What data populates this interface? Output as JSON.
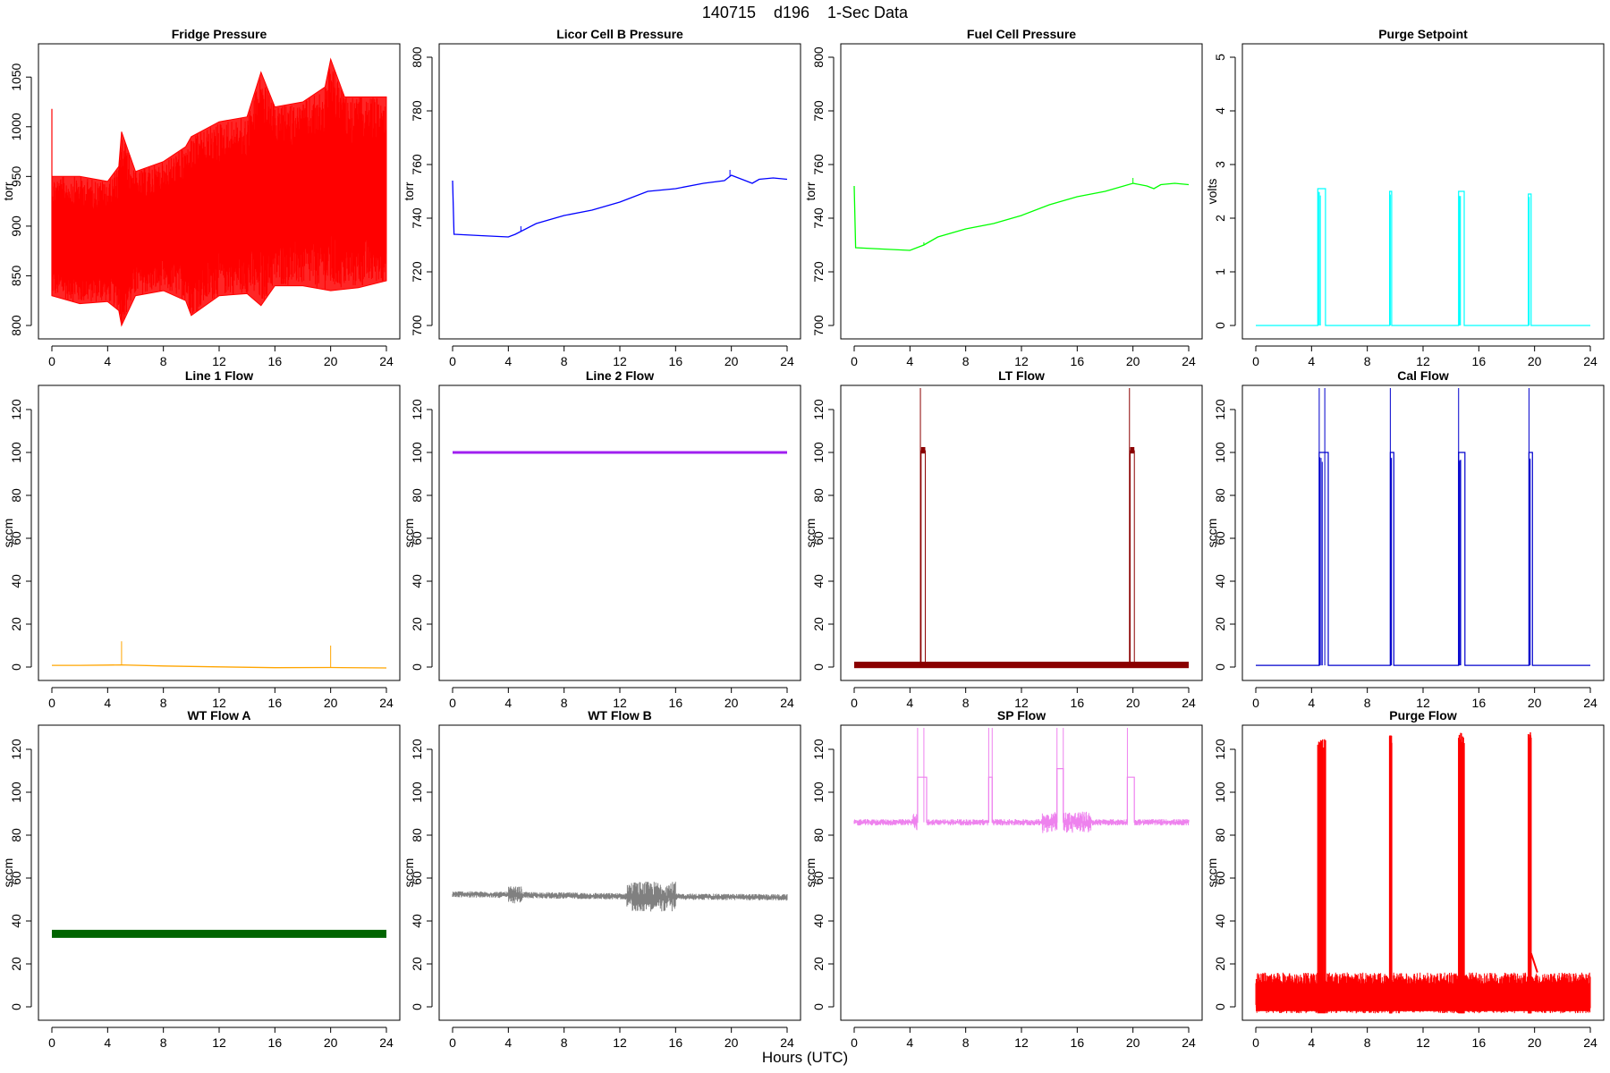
{
  "figure": {
    "title": "140715    d196    1-Sec Data",
    "xlabel": "Hours (UTC)"
  },
  "chart_data": [
    {
      "name": "Fridge Pressure",
      "type": "line",
      "title": "Fridge Pressure",
      "ylabel": "torr",
      "color": "#ff0000",
      "xlim": [
        0,
        24
      ],
      "ylim": [
        800,
        1070
      ],
      "xticks": [
        0,
        4,
        8,
        12,
        16,
        20,
        24
      ],
      "yticks": [
        800,
        850,
        900,
        950,
        1000,
        1050
      ],
      "style": "band",
      "lower": [
        [
          0,
          830
        ],
        [
          2,
          822
        ],
        [
          4,
          824
        ],
        [
          4.8,
          815
        ],
        [
          5,
          800
        ],
        [
          6,
          830
        ],
        [
          8,
          835
        ],
        [
          9.6,
          825
        ],
        [
          10,
          810
        ],
        [
          12,
          830
        ],
        [
          14,
          832
        ],
        [
          15,
          820
        ],
        [
          16,
          840
        ],
        [
          18,
          840
        ],
        [
          20,
          835
        ],
        [
          22,
          838
        ],
        [
          24,
          845
        ]
      ],
      "upper": [
        [
          0,
          950
        ],
        [
          2,
          950
        ],
        [
          4,
          945
        ],
        [
          4.8,
          960
        ],
        [
          5,
          995
        ],
        [
          6,
          955
        ],
        [
          8,
          965
        ],
        [
          9.6,
          980
        ],
        [
          10,
          990
        ],
        [
          12,
          1005
        ],
        [
          14,
          1010
        ],
        [
          15,
          1055
        ],
        [
          16,
          1020
        ],
        [
          18,
          1025
        ],
        [
          19.6,
          1040
        ],
        [
          20,
          1068
        ],
        [
          21,
          1030
        ],
        [
          24,
          1030
        ]
      ],
      "spikes": [
        [
          0,
          1018
        ]
      ]
    },
    {
      "name": "Licor Cell B Pressure",
      "type": "line",
      "title": "Licor Cell B Pressure",
      "ylabel": "torr",
      "color": "#0000ff",
      "xlim": [
        0,
        24
      ],
      "ylim": [
        700,
        800
      ],
      "xticks": [
        0,
        4,
        8,
        12,
        16,
        20,
        24
      ],
      "yticks": [
        700,
        720,
        740,
        760,
        780,
        800
      ],
      "style": "line",
      "points": [
        [
          0,
          754
        ],
        [
          0.1,
          734
        ],
        [
          2,
          733.5
        ],
        [
          4,
          733
        ],
        [
          4.5,
          734
        ],
        [
          6,
          738
        ],
        [
          8,
          741
        ],
        [
          10,
          743
        ],
        [
          12,
          746
        ],
        [
          14,
          750
        ],
        [
          16,
          751
        ],
        [
          18,
          753
        ],
        [
          19.5,
          754
        ],
        [
          20,
          756
        ],
        [
          21,
          754
        ],
        [
          21.5,
          753
        ],
        [
          22,
          754.5
        ],
        [
          23,
          755
        ],
        [
          24,
          754.5
        ]
      ],
      "spikes": [
        [
          4.9,
          737
        ],
        [
          19.9,
          758
        ]
      ]
    },
    {
      "name": "Fuel Cell Pressure",
      "type": "line",
      "title": "Fuel Cell Pressure",
      "ylabel": "torr",
      "color": "#00ff00",
      "xlim": [
        0,
        24
      ],
      "ylim": [
        700,
        800
      ],
      "xticks": [
        0,
        4,
        8,
        12,
        16,
        20,
        24
      ],
      "yticks": [
        700,
        720,
        740,
        760,
        780,
        800
      ],
      "style": "line",
      "points": [
        [
          0,
          752
        ],
        [
          0.1,
          729
        ],
        [
          2,
          728.5
        ],
        [
          4,
          728
        ],
        [
          5,
          730
        ],
        [
          6,
          733
        ],
        [
          8,
          736
        ],
        [
          10,
          738
        ],
        [
          12,
          741
        ],
        [
          14,
          745
        ],
        [
          16,
          748
        ],
        [
          18,
          750
        ],
        [
          20,
          753
        ],
        [
          21,
          752
        ],
        [
          21.5,
          751
        ],
        [
          22,
          752.5
        ],
        [
          23,
          753
        ],
        [
          24,
          752.5
        ]
      ],
      "spikes": [
        [
          5,
          731
        ],
        [
          20,
          755
        ]
      ]
    },
    {
      "name": "Purge Setpoint",
      "type": "line",
      "title": "Purge Setpoint",
      "ylabel": "volts",
      "color": "#00ffff",
      "xlim": [
        0,
        24
      ],
      "ylim": [
        0,
        5
      ],
      "xticks": [
        0,
        4,
        8,
        12,
        16,
        20,
        24
      ],
      "yticks": [
        0,
        1,
        2,
        3,
        4,
        5
      ],
      "style": "pulses",
      "base": 0,
      "pulses": [
        [
          4.45,
          5.0,
          2.55
        ],
        [
          9.6,
          9.75,
          2.5
        ],
        [
          14.55,
          14.95,
          2.5
        ],
        [
          19.55,
          19.75,
          2.45
        ]
      ]
    },
    {
      "name": "Line 1 Flow",
      "type": "line",
      "title": "Line 1 Flow",
      "ylabel": "sccm",
      "color": "#ffa500",
      "xlim": [
        0,
        24
      ],
      "ylim": [
        0,
        125
      ],
      "xticks": [
        0,
        4,
        8,
        12,
        16,
        20,
        24
      ],
      "yticks": [
        0,
        20,
        40,
        60,
        80,
        100,
        120
      ],
      "style": "line",
      "points": [
        [
          0,
          0.8
        ],
        [
          2,
          0.8
        ],
        [
          4,
          0.9
        ],
        [
          5,
          1.0
        ],
        [
          8,
          0.5
        ],
        [
          12,
          0.1
        ],
        [
          16,
          -0.3
        ],
        [
          20,
          -0.2
        ],
        [
          24,
          -0.4
        ]
      ],
      "spikes": [
        [
          5,
          12
        ],
        [
          20,
          10
        ]
      ]
    },
    {
      "name": "Line 2 Flow",
      "type": "line",
      "title": "Line 2 Flow",
      "ylabel": "sccm",
      "color": "#a020f0",
      "xlim": [
        0,
        24
      ],
      "ylim": [
        0,
        125
      ],
      "xticks": [
        0,
        4,
        8,
        12,
        16,
        20,
        24
      ],
      "yticks": [
        0,
        20,
        40,
        60,
        80,
        100,
        120
      ],
      "style": "thick",
      "points": [
        [
          0,
          100
        ],
        [
          24,
          100
        ]
      ]
    },
    {
      "name": "LT Flow",
      "type": "line",
      "title": "LT Flow",
      "ylabel": "sccm",
      "color": "#8b0000",
      "xlim": [
        0,
        24
      ],
      "ylim": [
        0,
        125
      ],
      "xticks": [
        0,
        4,
        8,
        12,
        16,
        20,
        24
      ],
      "yticks": [
        0,
        20,
        40,
        60,
        80,
        100,
        120
      ],
      "style": "lt",
      "base": 1,
      "blocks": [
        [
          4.8,
          5.1,
          101
        ],
        [
          19.8,
          20.1,
          101
        ]
      ],
      "spikes": [
        [
          4.75,
          130
        ],
        [
          19.75,
          130
        ]
      ]
    },
    {
      "name": "Cal Flow",
      "type": "line",
      "title": "Cal Flow",
      "ylabel": "sccm",
      "color": "#0000cd",
      "xlim": [
        0,
        24
      ],
      "ylim": [
        0,
        125
      ],
      "xticks": [
        0,
        4,
        8,
        12,
        16,
        20,
        24
      ],
      "yticks": [
        0,
        20,
        40,
        60,
        80,
        100,
        120
      ],
      "style": "pulses",
      "base": 0.8,
      "pulses": [
        [
          4.55,
          5.2,
          100
        ],
        [
          9.65,
          9.9,
          100
        ],
        [
          14.55,
          15.0,
          100
        ],
        [
          19.6,
          19.85,
          100
        ]
      ],
      "spikes": [
        [
          4.55,
          130
        ],
        [
          4.95,
          130
        ],
        [
          9.65,
          130
        ],
        [
          14.55,
          130
        ],
        [
          19.6,
          130
        ]
      ]
    },
    {
      "name": "WT Flow A",
      "type": "line",
      "title": "WT Flow A",
      "ylabel": "sccm",
      "color": "#006400",
      "xlim": [
        0,
        24
      ],
      "ylim": [
        0,
        125
      ],
      "xticks": [
        0,
        4,
        8,
        12,
        16,
        20,
        24
      ],
      "yticks": [
        0,
        20,
        40,
        60,
        80,
        100,
        120
      ],
      "style": "thick",
      "points": [
        [
          0,
          34
        ],
        [
          24,
          34
        ]
      ]
    },
    {
      "name": "WT Flow B",
      "type": "line",
      "title": "WT Flow B",
      "ylabel": "sccm",
      "color": "#808080",
      "xlim": [
        0,
        24
      ],
      "ylim": [
        0,
        125
      ],
      "xticks": [
        0,
        4,
        8,
        12,
        16,
        20,
        24
      ],
      "yticks": [
        0,
        20,
        40,
        60,
        80,
        100,
        120
      ],
      "style": "noisy",
      "base": 52,
      "noise": [
        [
          0,
          24,
          1.5
        ],
        [
          4,
          5,
          4
        ],
        [
          12.5,
          16,
          7
        ]
      ],
      "trend": [
        [
          0,
          52.5
        ],
        [
          12,
          51.5
        ],
        [
          24,
          51
        ]
      ]
    },
    {
      "name": "SP Flow",
      "type": "line",
      "title": "SP Flow",
      "ylabel": "sccm",
      "color": "#ee82ee",
      "xlim": [
        0,
        24
      ],
      "ylim": [
        0,
        125
      ],
      "xticks": [
        0,
        4,
        8,
        12,
        16,
        20,
        24
      ],
      "yticks": [
        0,
        20,
        40,
        60,
        80,
        100,
        120
      ],
      "style": "sp",
      "base": 86,
      "pulses": [
        [
          4.55,
          5.2,
          107
        ],
        [
          9.65,
          9.9,
          107
        ],
        [
          14.55,
          15.0,
          111
        ],
        [
          19.6,
          20.1,
          107
        ]
      ],
      "spikes": [
        [
          4.55,
          130
        ],
        [
          5.0,
          130
        ],
        [
          9.65,
          130
        ],
        [
          9.9,
          130
        ],
        [
          14.55,
          130
        ],
        [
          15.0,
          130
        ],
        [
          19.6,
          130
        ]
      ],
      "noise": [
        [
          0,
          24,
          1.5
        ],
        [
          4.2,
          4.6,
          4
        ],
        [
          13.5,
          17,
          5
        ]
      ]
    },
    {
      "name": "Purge Flow",
      "type": "line",
      "title": "Purge Flow",
      "ylabel": "sccm",
      "color": "#ff0000",
      "xlim": [
        0,
        24
      ],
      "ylim": [
        0,
        125
      ],
      "xticks": [
        0,
        4,
        8,
        12,
        16,
        20,
        24
      ],
      "yticks": [
        0,
        20,
        40,
        60,
        80,
        100,
        120
      ],
      "style": "purge",
      "base": 5,
      "lower": -3,
      "upper": 16,
      "pulses": [
        [
          4.45,
          5.0,
          125
        ],
        [
          9.6,
          9.75,
          128
        ],
        [
          14.55,
          14.95,
          128
        ],
        [
          19.55,
          19.75,
          128
        ]
      ],
      "tail": [
        [
          19.75,
          20.2,
          25
        ]
      ]
    }
  ]
}
